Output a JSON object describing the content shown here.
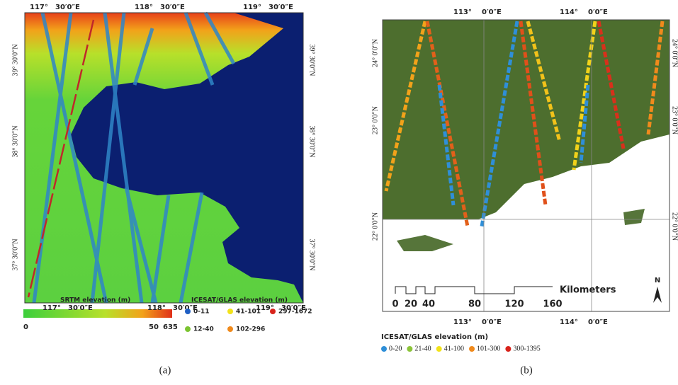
{
  "panel_a": {
    "top_labels": [
      "117°",
      "30′0″E",
      "118°",
      "30′0″E",
      "119°",
      "30′0″E"
    ],
    "left_labels": [
      "39° 30′0″N",
      "38° 30′0″N",
      "37° 30′0″N"
    ],
    "right_labels": [
      "39° 30′0″N",
      "38° 30′0″N",
      "37° 30′0″N"
    ],
    "bottom_labels": [
      "117°",
      "30′0″E",
      "118°",
      "30′0″E",
      "119°",
      "30′0″E"
    ],
    "srtm_legend": {
      "title": "SRTM elevation (m)",
      "ticks": [
        "0",
        "50",
        "635"
      ]
    },
    "glas_legend": {
      "title": "ICESAT/GLAS elevation (m)",
      "items": [
        {
          "label": "0-11",
          "color": "#1f5fc4"
        },
        {
          "label": "41-101",
          "color": "#f2e21a"
        },
        {
          "label": "297-1672",
          "color": "#d8231b"
        },
        {
          "label": "12-40",
          "color": "#7cc431"
        },
        {
          "label": "102-296",
          "color": "#f08a1c"
        }
      ]
    },
    "caption": "(a)"
  },
  "panel_b": {
    "top_labels": [
      "113°",
      "0′0″E",
      "114°",
      "0′0″E"
    ],
    "left_labels": [
      "24° 0′0″N",
      "23° 0′0″N",
      "22° 0′0″N"
    ],
    "right_labels": [
      "24° 0′0″N",
      "23° 0′0″N",
      "22° 0′0″N"
    ],
    "bottom_labels": [
      "113°",
      "0′0″E",
      "114°",
      "0′0″E"
    ],
    "scale": {
      "ticks": [
        "0",
        "20",
        "40",
        "80",
        "120",
        "160"
      ],
      "unit": "Kilometers"
    },
    "north": "N",
    "glas_legend": {
      "title": "ICESAT/GLAS elevation (m)",
      "items": [
        {
          "label": "0-20",
          "color": "#2f8fd8"
        },
        {
          "label": "21-40",
          "color": "#8cc43a"
        },
        {
          "label": "41-100",
          "color": "#f2e21a"
        },
        {
          "label": "101-300",
          "color": "#f08a1c"
        },
        {
          "label": "300-1395",
          "color": "#d8231b"
        }
      ]
    },
    "caption": "(b)"
  }
}
